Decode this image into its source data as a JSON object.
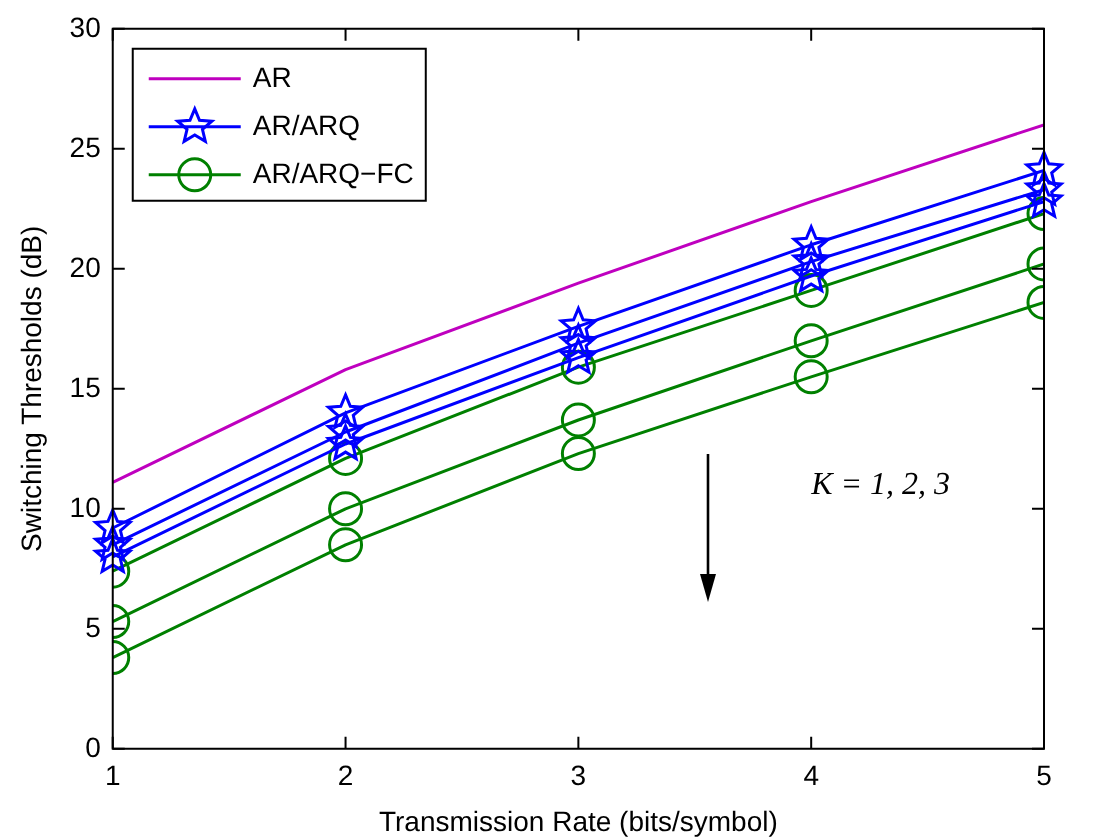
{
  "chart_data": {
    "type": "line",
    "xlabel": "Transmission Rate (bits/symbol)",
    "ylabel": "Switching Thresholds (dB)",
    "x": [
      1,
      2,
      3,
      4,
      5
    ],
    "xlim": [
      1,
      5
    ],
    "xticks": [
      1,
      2,
      3,
      4,
      5
    ],
    "ylim": [
      0,
      30
    ],
    "yticks": [
      0,
      5,
      10,
      15,
      20,
      25,
      30
    ],
    "grid": false,
    "legend": "top left",
    "annotations": [
      "K = 1, 2, 3"
    ],
    "series": [
      {
        "name": "AR",
        "color": "#bf00bf",
        "marker": "none",
        "values": [
          11.1,
          15.8,
          19.4,
          22.8,
          26.0
        ]
      },
      {
        "name": "AR/ARQ",
        "color": "#0000ff",
        "marker": "star",
        "values": [
          9.2,
          14.0,
          17.6,
          21.0,
          24.1
        ]
      },
      {
        "color": "#0000ff",
        "marker": "star",
        "values": [
          8.5,
          13.2,
          16.9,
          20.3,
          23.3
        ]
      },
      {
        "color": "#0000ff",
        "marker": "star",
        "values": [
          8.0,
          12.7,
          16.3,
          19.7,
          22.8
        ]
      },
      {
        "name": "AR/ARQ−FC",
        "color": "#008000",
        "marker": "circle",
        "values": [
          7.4,
          12.1,
          15.9,
          19.1,
          22.3
        ]
      },
      {
        "color": "#008000",
        "marker": "circle",
        "values": [
          5.3,
          10.0,
          13.7,
          17.0,
          20.2
        ]
      },
      {
        "color": "#008000",
        "marker": "circle",
        "values": [
          3.8,
          8.5,
          12.3,
          15.5,
          18.6
        ]
      }
    ]
  }
}
